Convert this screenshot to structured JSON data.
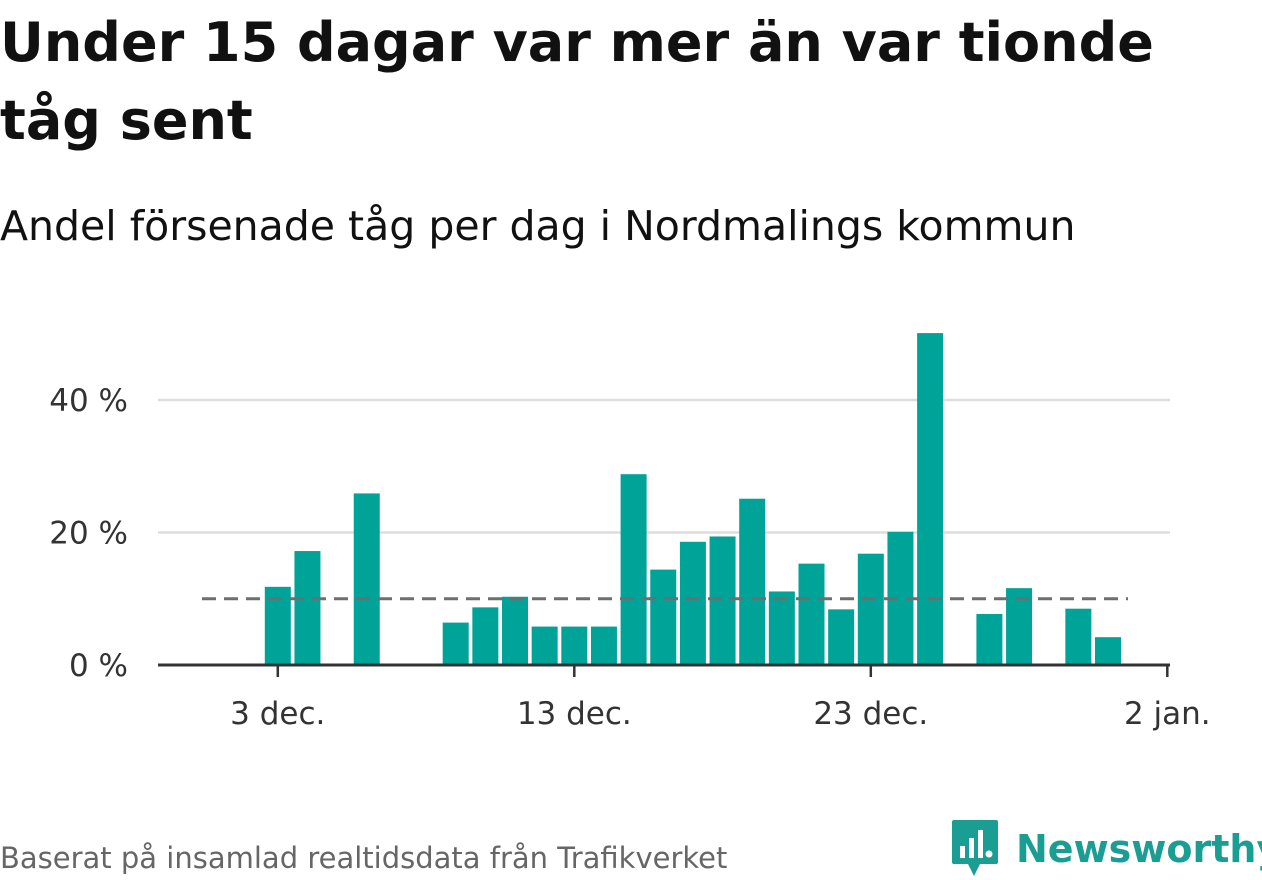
{
  "title": "Under 15 dagar var mer än var tionde tåg sent",
  "subtitle": "Andel försenade tåg per dag i Nordmalings kommun",
  "source": "Baserat på insamlad realtidsdata från Trafikverket",
  "brand": "Newsworthy",
  "colors": {
    "bar": "#00a398",
    "reference_line": "#6e6e6e",
    "grid": "#dddddd",
    "axis": "#333333",
    "brand": "#1a9e93"
  },
  "chart_data": {
    "type": "bar",
    "x_start": "2023-11-29",
    "dates": [
      "2023-11-29",
      "2023-11-30",
      "2023-12-01",
      "2023-12-02",
      "2023-12-03",
      "2023-12-04",
      "2023-12-05",
      "2023-12-06",
      "2023-12-07",
      "2023-12-08",
      "2023-12-09",
      "2023-12-10",
      "2023-12-11",
      "2023-12-12",
      "2023-12-13",
      "2023-12-14",
      "2023-12-15",
      "2023-12-16",
      "2023-12-17",
      "2023-12-18",
      "2023-12-19",
      "2023-12-20",
      "2023-12-21",
      "2023-12-22",
      "2023-12-23",
      "2023-12-24",
      "2023-12-25",
      "2023-12-26",
      "2023-12-27",
      "2023-12-28",
      "2023-12-29",
      "2023-12-30",
      "2023-12-31",
      "2024-01-01"
    ],
    "values": [
      null,
      null,
      null,
      null,
      11.8,
      17.2,
      null,
      25.9,
      null,
      null,
      6.4,
      8.7,
      10.3,
      5.8,
      5.8,
      5.8,
      28.8,
      14.4,
      18.6,
      19.4,
      25.1,
      11.1,
      15.3,
      8.4,
      16.8,
      20.1,
      50.1,
      null,
      7.7,
      11.6,
      null,
      8.5,
      4.2,
      null
    ],
    "reference_line": 10,
    "ylim": [
      0,
      52
    ],
    "yticks": [
      0,
      20,
      40
    ],
    "ytick_labels": [
      "0 %",
      "20 %",
      "40 %"
    ],
    "xticks": [
      "2023-12-03",
      "2023-12-13",
      "2023-12-23",
      "2024-01-02"
    ],
    "xtick_labels": [
      "3 dec.",
      "13 dec.",
      "23 dec.",
      "2 jan."
    ],
    "grid": true,
    "xlabel": "",
    "ylabel": ""
  }
}
